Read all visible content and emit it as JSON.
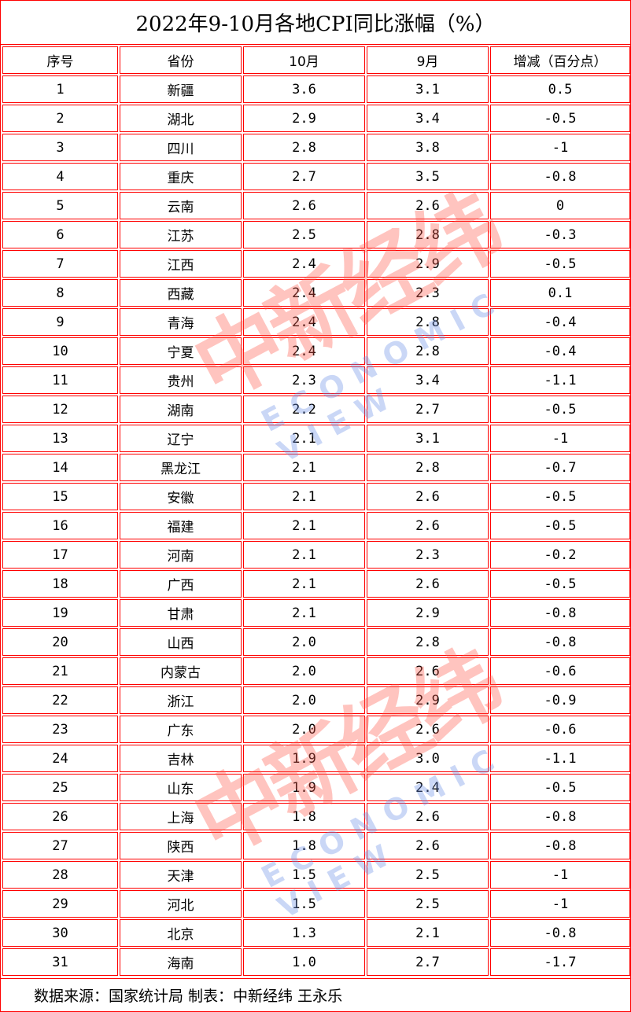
{
  "title": "2022年9-10月各地CPI同比涨幅（%）",
  "headers": [
    "序号",
    "省份",
    "10月",
    "9月",
    "增减（百分点）"
  ],
  "rows": [
    [
      "1",
      "新疆",
      "3.6",
      "3.1",
      "0.5"
    ],
    [
      "2",
      "湖北",
      "2.9",
      "3.4",
      "-0.5"
    ],
    [
      "3",
      "四川",
      "2.8",
      "3.8",
      "-1"
    ],
    [
      "4",
      "重庆",
      "2.7",
      "3.5",
      "-0.8"
    ],
    [
      "5",
      "云南",
      "2.6",
      "2.6",
      "0"
    ],
    [
      "6",
      "江苏",
      "2.5",
      "2.8",
      "-0.3"
    ],
    [
      "7",
      "江西",
      "2.4",
      "2.9",
      "-0.5"
    ],
    [
      "8",
      "西藏",
      "2.4",
      "2.3",
      "0.1"
    ],
    [
      "9",
      "青海",
      "2.4",
      "2.8",
      "-0.4"
    ],
    [
      "10",
      "宁夏",
      "2.4",
      "2.8",
      "-0.4"
    ],
    [
      "11",
      "贵州",
      "2.3",
      "3.4",
      "-1.1"
    ],
    [
      "12",
      "湖南",
      "2.2",
      "2.7",
      "-0.5"
    ],
    [
      "13",
      "辽宁",
      "2.1",
      "3.1",
      "-1"
    ],
    [
      "14",
      "黑龙江",
      "2.1",
      "2.8",
      "-0.7"
    ],
    [
      "15",
      "安徽",
      "2.1",
      "2.6",
      "-0.5"
    ],
    [
      "16",
      "福建",
      "2.1",
      "2.6",
      "-0.5"
    ],
    [
      "17",
      "河南",
      "2.1",
      "2.3",
      "-0.2"
    ],
    [
      "18",
      "广西",
      "2.1",
      "2.6",
      "-0.5"
    ],
    [
      "19",
      "甘肃",
      "2.1",
      "2.9",
      "-0.8"
    ],
    [
      "20",
      "山西",
      "2.0",
      "2.8",
      "-0.8"
    ],
    [
      "21",
      "内蒙古",
      "2.0",
      "2.6",
      "-0.6"
    ],
    [
      "22",
      "浙江",
      "2.0",
      "2.9",
      "-0.9"
    ],
    [
      "23",
      "广东",
      "2.0",
      "2.6",
      "-0.6"
    ],
    [
      "24",
      "吉林",
      "1.9",
      "3.0",
      "-1.1"
    ],
    [
      "25",
      "山东",
      "1.9",
      "2.4",
      "-0.5"
    ],
    [
      "26",
      "上海",
      "1.8",
      "2.6",
      "-0.8"
    ],
    [
      "27",
      "陕西",
      "1.8",
      "2.6",
      "-0.8"
    ],
    [
      "28",
      "天津",
      "1.5",
      "2.5",
      "-1"
    ],
    [
      "29",
      "河北",
      "1.5",
      "2.5",
      "-1"
    ],
    [
      "30",
      "北京",
      "1.3",
      "2.1",
      "-0.8"
    ],
    [
      "31",
      "海南",
      "1.0",
      "2.7",
      "-1.7"
    ]
  ],
  "footer": "数据来源：国家统计局 制表：中新经纬 王永乐",
  "watermark": {
    "cn": "中新经纬",
    "en": "ECONOMIC VIEW"
  },
  "colors": {
    "border": "#ff0000",
    "watermark_red": "#ff5a4a",
    "watermark_blue": "#6b8fe8"
  }
}
